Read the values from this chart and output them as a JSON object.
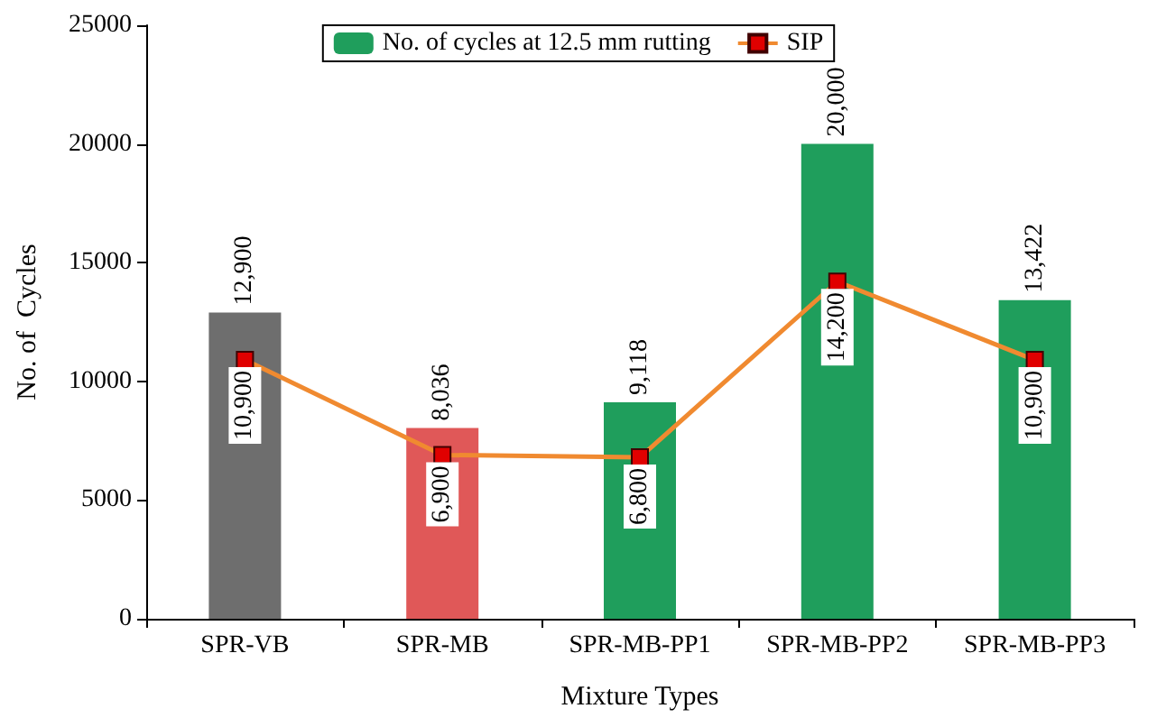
{
  "chart_data": {
    "type": "bar",
    "xlabel": "Mixture Types",
    "ylabel": "No. of  Cycles",
    "categories": [
      "SPR-VB",
      "SPR-MB",
      "SPR-MB-PP1",
      "SPR-MB-PP2",
      "SPR-MB-PP3"
    ],
    "series": [
      {
        "name": "No. of cycles at 12.5 mm rutting",
        "color": "#1f9e5c",
        "colors": [
          "#6e6e6e",
          "#e05858",
          "#1f9e5c",
          "#1f9e5c",
          "#1f9e5c"
        ],
        "values": [
          12900,
          8036,
          9118,
          20000,
          13422
        ],
        "value_labels": [
          "12,900",
          "8,036",
          "9,118",
          "20,000",
          "13,422"
        ]
      },
      {
        "name": "SIP",
        "type": "line",
        "color": "#f08a30",
        "marker": "square",
        "values": [
          10900,
          6900,
          6800,
          14200,
          10900
        ],
        "value_labels": [
          "10,900",
          "6,900",
          "6,800",
          "14,200",
          "10,900"
        ]
      }
    ],
    "ylim": [
      0,
      25000
    ],
    "yticks": [
      0,
      5000,
      10000,
      15000,
      20000,
      25000
    ],
    "grid": false,
    "legend": "top"
  }
}
